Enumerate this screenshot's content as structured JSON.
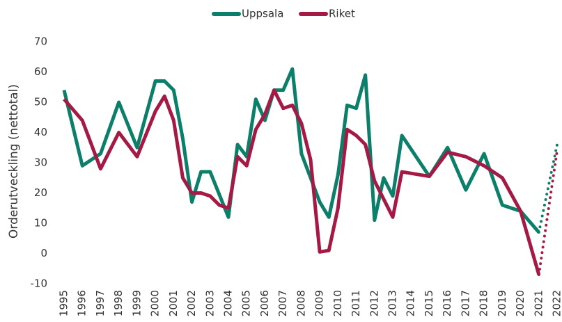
{
  "chart_data": {
    "type": "line",
    "y_label": "Orderutveckling (nettotal)",
    "xlim": [
      1995,
      2022
    ],
    "xticks": [
      1995,
      1996,
      1997,
      1998,
      1999,
      2000,
      2001,
      2002,
      2003,
      2004,
      2005,
      2006,
      2007,
      2008,
      2009,
      2010,
      2011,
      2012,
      2013,
      2014,
      2015,
      2016,
      2017,
      2018,
      2019,
      2020,
      2021,
      2022
    ],
    "ylim": [
      -10,
      70
    ],
    "yticks": [
      -10,
      0,
      10,
      20,
      30,
      40,
      50,
      60,
      70
    ],
    "grid": false,
    "legend": "top",
    "series": [
      {
        "name": "Uppsala",
        "color": "#0b7f69",
        "x": [
          1995,
          1996,
          1997,
          1998,
          1999,
          2000,
          2000.5,
          2001,
          2001.5,
          2002,
          2002.5,
          2003,
          2004,
          2004.5,
          2005,
          2005.5,
          2006,
          2006.5,
          2007,
          2007.5,
          2008,
          2009,
          2009.5,
          2010,
          2010.5,
          2011,
          2011.5,
          2012,
          2012.5,
          2013,
          2013.5,
          2015,
          2016,
          2017,
          2018,
          2019,
          2020,
          2021
        ],
        "values": [
          54,
          29,
          33,
          50,
          35,
          57,
          57,
          54,
          38,
          17,
          27,
          27,
          12,
          36,
          32,
          51,
          44,
          54,
          54,
          61,
          33,
          17,
          12,
          26,
          49,
          48,
          59,
          11,
          25,
          19,
          39,
          25.5,
          35,
          21,
          33,
          16,
          14,
          7
        ],
        "forecast": {
          "x": [
            2021,
            2022
          ],
          "values": [
            7,
            36
          ]
        }
      },
      {
        "name": "Riket",
        "color": "#a51a45",
        "x": [
          1995,
          1996,
          1997,
          1998,
          1999,
          2000,
          2000.5,
          2001,
          2001.5,
          2002,
          2002.5,
          2003,
          2003.5,
          2004,
          2004.5,
          2005,
          2005.5,
          2006,
          2006.5,
          2007,
          2007.5,
          2008,
          2008.5,
          2009,
          2009.5,
          2010,
          2010.5,
          2011,
          2011.5,
          2012,
          2012.5,
          2013,
          2013.5,
          2015,
          2016,
          2017,
          2018,
          2019,
          2020,
          2021
        ],
        "values": [
          51,
          44,
          28,
          40,
          32,
          47,
          52,
          44,
          25,
          20,
          20,
          19,
          16,
          15,
          32,
          29,
          41,
          46,
          54,
          48,
          49,
          43,
          31,
          0.5,
          1,
          15,
          41,
          39,
          36,
          24,
          18,
          12,
          27,
          25.5,
          33.5,
          32,
          29,
          25,
          14,
          -7
        ],
        "forecast": {
          "x": [
            2021,
            2022
          ],
          "values": [
            -7,
            34
          ]
        }
      }
    ]
  }
}
